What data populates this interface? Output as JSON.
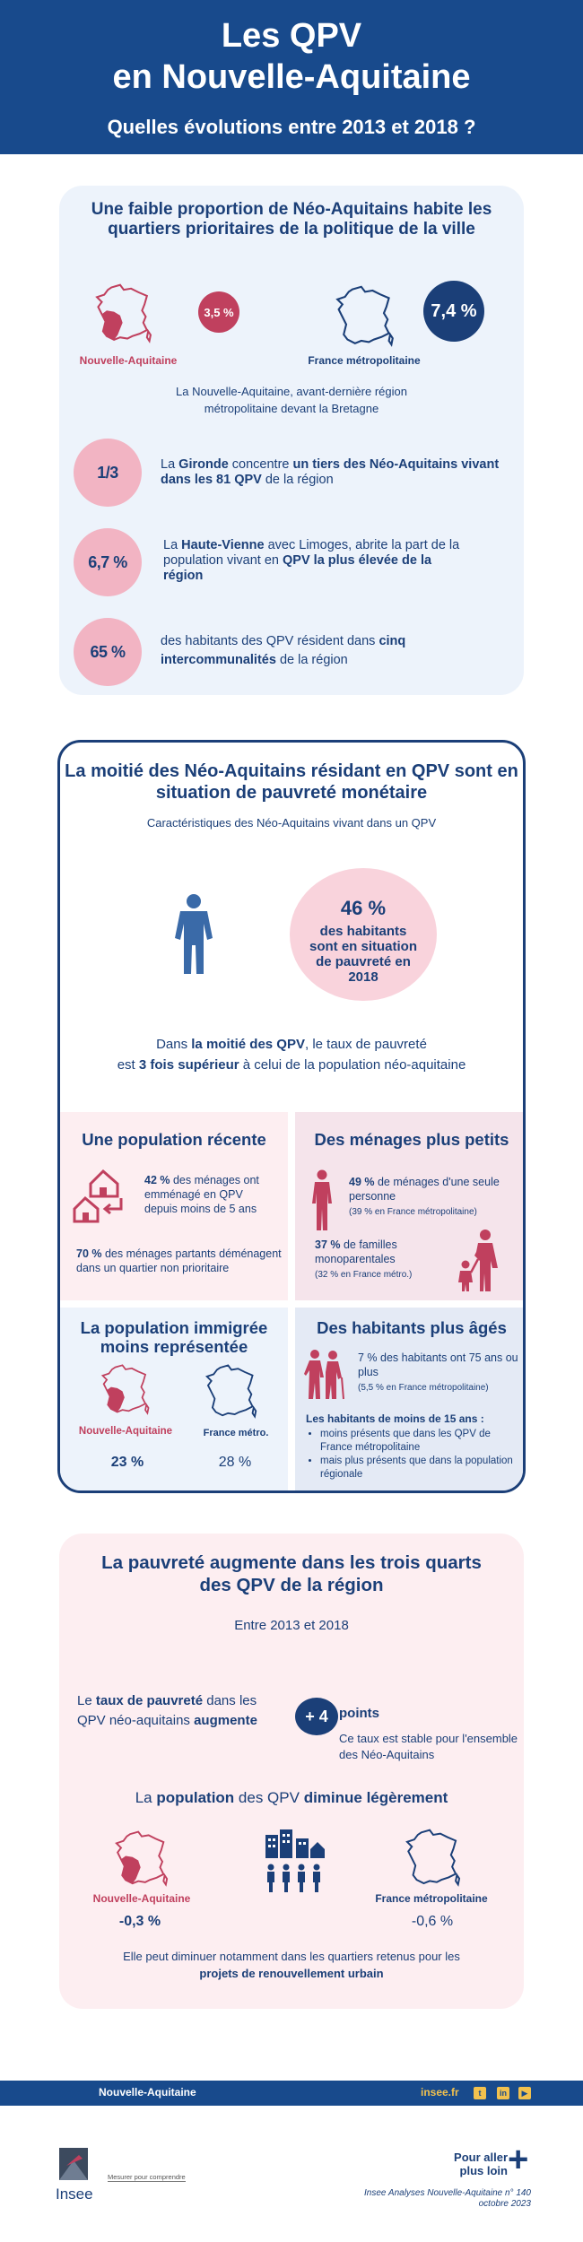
{
  "header": {
    "title_line1": "Les QPV",
    "title_line2": "en Nouvelle-Aquitaine",
    "subtitle": "Quelles évolutions entre 2013 et 2018 ?"
  },
  "section1": {
    "title": "Une faible proportion de Néo-Aquitains habite les quartiers prioritaires de la politique de la ville",
    "region_value": "3,5 %",
    "region_label": "Nouvelle-Aquitaine",
    "france_value": "7,4 %",
    "france_label": "France métropolitaine",
    "note": "La Nouvelle-Aquitaine, avant-dernière région métropolitaine devant la Bretagne",
    "stats": [
      {
        "value": "1/3",
        "t1": "La ",
        "b1": "Gironde",
        "t2": " concentre ",
        "b2": "un tiers des Néo-Aquitains vivant dans les 81 QPV",
        "t3": " de la région"
      },
      {
        "value": "6,7 %",
        "t1": "La ",
        "b1": "Haute-Vienne",
        "t2": " avec Limoges, abrite la part de la population vivant en ",
        "b2": "QPV la plus élevée de la région",
        "t3": ""
      },
      {
        "value": "65 %",
        "t1": "des habitants des QPV résident dans ",
        "b1": "cinq intercommunalités",
        "t2": " de la région",
        "b2": "",
        "t3": ""
      }
    ]
  },
  "section2": {
    "title": "La moitié des Néo-Aquitains résidant en QPV sont en situation de pauvreté monétaire",
    "subtitle": "Caractéristiques des Néo-Aquitains vivant dans un QPV",
    "poverty_pct": "46 %",
    "poverty_text": "des habitants sont en situation de pauvreté en 2018",
    "note_t1": "Dans ",
    "note_b1": "la moitié des QPV",
    "note_t2": ", le taux de pauvreté",
    "note_t3": "est ",
    "note_b2": "3 fois supérieur",
    "note_t4": " à celui de la population néo-aquitaine",
    "recent": {
      "title": "Une population récente",
      "s1_b": "42 %",
      "s1_t": " des ménages ont emménagé en QPV depuis moins de 5 ans",
      "s2_b": "70 %",
      "s2_t": " des ménages partants déménagent dans un quartier non prioritaire"
    },
    "households": {
      "title": "Des ménages plus petits",
      "s1_b": "49 %",
      "s1_t": " de ménages d'une seule personne",
      "s1_sm": "(39 % en France métropolitaine)",
      "s2_b": "37 %",
      "s2_t": " de familles monoparentales",
      "s2_sm": "(32 % en France métro.)"
    },
    "immigrant": {
      "title": "La population immigrée moins représentée",
      "region_label": "Nouvelle-Aquitaine",
      "region_value": "23 %",
      "france_label": "France métro.",
      "france_value": "28 %"
    },
    "older": {
      "title": "Des habitants plus âgés",
      "s1": "7 % des habitants ont 75 ans ou plus",
      "s1_sm": "(5,5 % en France métropolitaine)",
      "under15_title": "Les habitants de moins de 15 ans :",
      "bullets": [
        "moins présents que dans les QPV de France métropolitaine",
        "mais plus présents que dans la population régionale"
      ]
    }
  },
  "section3": {
    "title": "La pauvreté augmente dans les trois quarts des QPV de la région",
    "range": "Entre 2013 et 2018",
    "rate_t1": "Le ",
    "rate_b1": "taux de pauvreté",
    "rate_t2": " dans les QPV néo-aquitains ",
    "rate_b2": "augmente",
    "plus_value": "+ 4",
    "points_label": "points",
    "stable_note": "Ce taux est stable pour l'ensemble des Néo-Aquitains",
    "pop_t1": "La ",
    "pop_b1": "population",
    "pop_t2": " des QPV ",
    "pop_b2": "diminue légèrement",
    "region_label": "Nouvelle-Aquitaine",
    "region_value": "-0,3 %",
    "france_label": "France métropolitaine",
    "france_value": "-0,6 %",
    "renewal_t1": "Elle peut diminuer notamment dans les quartiers retenus pour les",
    "renewal_b1": "projets de renouvellement urbain"
  },
  "footer": {
    "region": "Nouvelle-Aquitaine",
    "site": "insee.fr",
    "logo_word": "Insee",
    "tagline": "Mesurer pour comprendre",
    "go_further_1": "Pour aller",
    "go_further_2": "plus loin",
    "publication_1": "Insee Analyses Nouvelle-Aquitaine n° 140",
    "publication_2": "octobre 2023"
  },
  "colors": {
    "navy": "#1b3f78",
    "header": "#184a8c",
    "rose": "#c0405e",
    "pink": "#f2b4c3",
    "yellow": "#f2c14e"
  },
  "icons": [
    "nouvelle-aquitaine-map-icon",
    "france-map-icon",
    "person-icon",
    "houses-icon",
    "single-person-icon",
    "family-icon",
    "elderly-couple-icon",
    "buildings-people-icon",
    "twitter-icon",
    "linkedin-icon",
    "youtube-icon"
  ]
}
